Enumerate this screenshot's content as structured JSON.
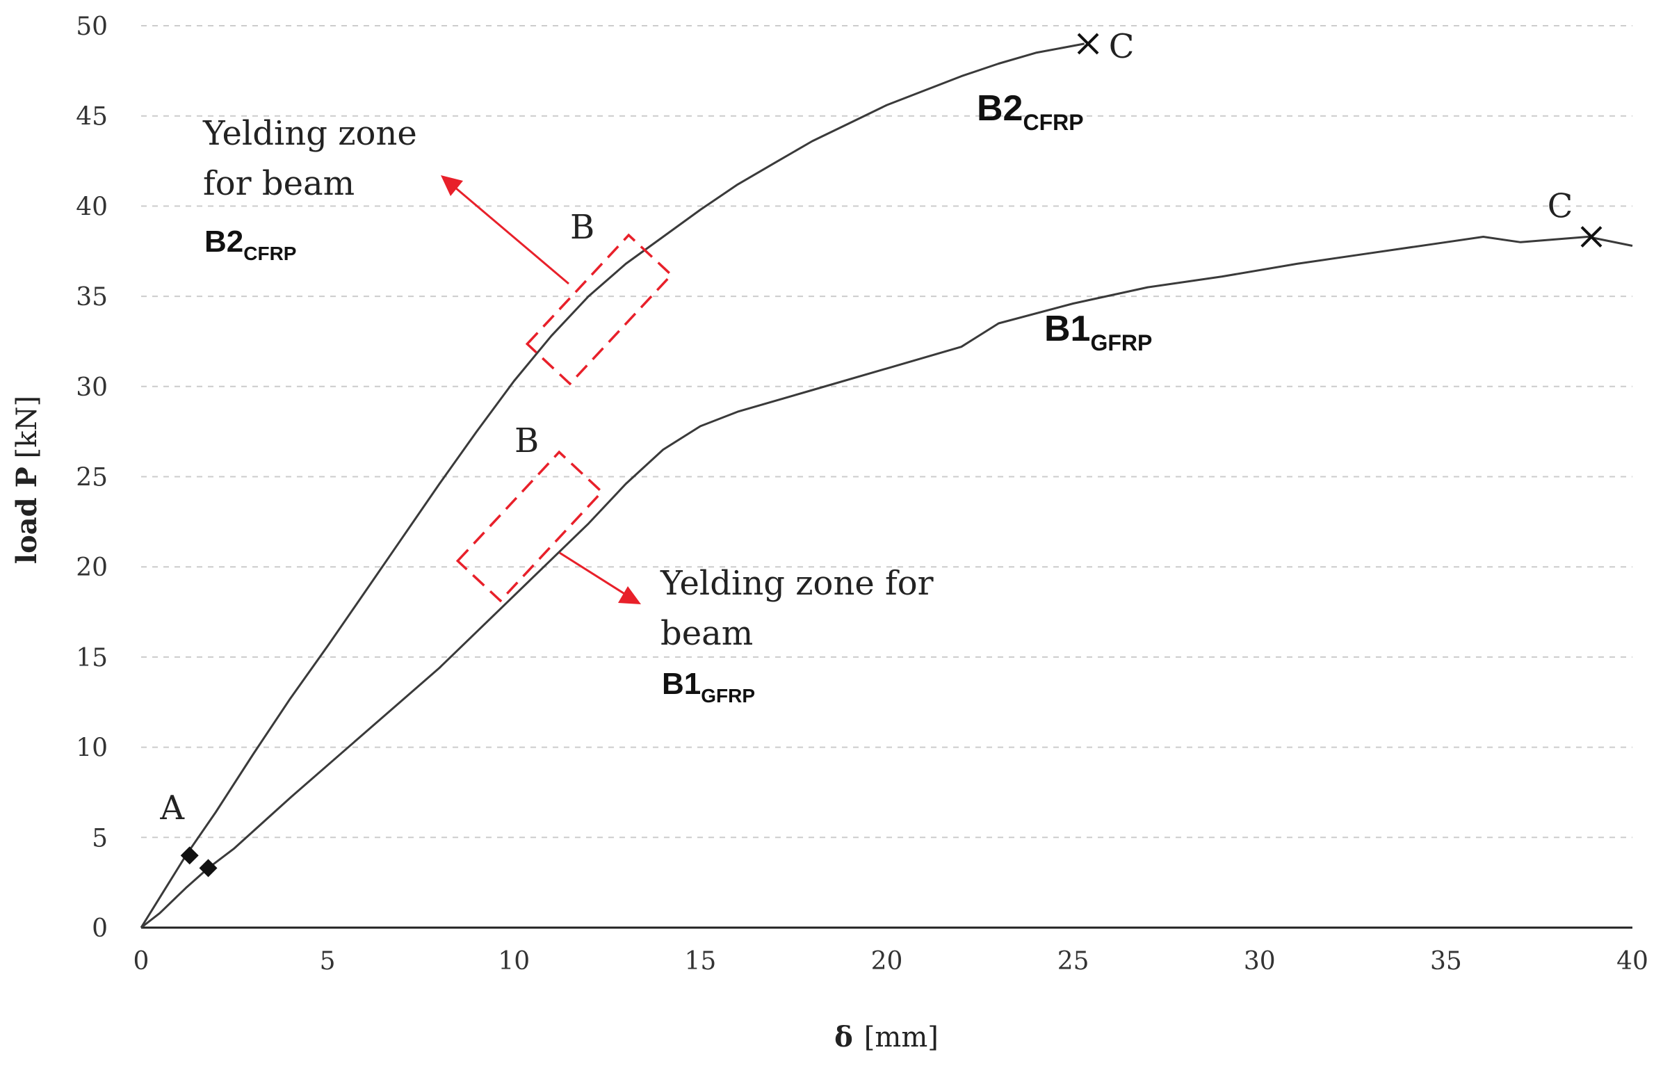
{
  "chart_data": {
    "type": "line",
    "title": "",
    "xlabel": "δ",
    "xlabel_unit": "[mm]",
    "ylabel": "load P",
    "ylabel_unit": "[kN]",
    "xlim": [
      0,
      40
    ],
    "ylim": [
      0,
      50
    ],
    "xticks": [
      0,
      5,
      10,
      15,
      20,
      25,
      30,
      35,
      40
    ],
    "yticks": [
      0,
      5,
      10,
      15,
      20,
      25,
      30,
      35,
      40,
      45,
      50
    ],
    "grid": "horizontal dashed",
    "series": [
      {
        "name": "B2",
        "sub": "CFRP",
        "x": [
          0,
          0.6,
          1.2,
          2,
          3,
          4,
          5,
          6,
          7,
          8,
          9,
          10,
          11,
          12,
          13,
          14,
          15,
          16,
          17,
          18,
          19,
          20,
          21,
          22,
          23,
          24,
          25.3
        ],
        "y": [
          0,
          2,
          4,
          6.4,
          9.6,
          12.7,
          15.6,
          18.6,
          21.6,
          24.6,
          27.5,
          30.3,
          32.8,
          35.0,
          36.8,
          38.3,
          39.8,
          41.2,
          42.4,
          43.6,
          44.6,
          45.6,
          46.4,
          47.2,
          47.9,
          48.5,
          49.0
        ]
      },
      {
        "name": "B1",
        "sub": "GFRP",
        "x": [
          0,
          0.5,
          1.2,
          1.8,
          2.5,
          4,
          6,
          8,
          10,
          11,
          12,
          13,
          14,
          15,
          16,
          18,
          20,
          22,
          23,
          25,
          27,
          29,
          31,
          33,
          35,
          36,
          37,
          38.8,
          40
        ],
        "y": [
          0,
          0.8,
          2.2,
          3.3,
          4.4,
          7.2,
          10.8,
          14.4,
          18.4,
          20.4,
          22.4,
          24.6,
          26.5,
          27.8,
          28.6,
          29.8,
          31.0,
          32.2,
          33.5,
          34.6,
          35.5,
          36.1,
          36.8,
          37.4,
          38.0,
          38.3,
          38.0,
          38.3,
          37.8
        ]
      }
    ],
    "markers": [
      {
        "label": "A",
        "x": 1.3,
        "y": 4.0,
        "shape": "diamond"
      },
      {
        "label": "",
        "x": 1.8,
        "y": 3.3,
        "shape": "diamond"
      },
      {
        "label": "C",
        "x": 25.4,
        "y": 49.0,
        "shape": "x"
      },
      {
        "label": "C",
        "x": 38.9,
        "y": 38.3,
        "shape": "x"
      }
    ],
    "annotations": [
      {
        "text_lines": [
          "Yelding zone",
          "for beam"
        ],
        "beam": "B2",
        "beam_sub": "CFRP"
      },
      {
        "text_lines": [
          "Yelding zone for",
          "beam"
        ],
        "beam": "B1",
        "beam_sub": "GFRP"
      },
      {
        "text": "B",
        "ref": "B2 yield point"
      },
      {
        "text": "B",
        "ref": "B1 yield point"
      }
    ]
  },
  "colors": {
    "curve": "#3a3a3a",
    "axis": "#222222",
    "grid": "#cccccc",
    "highlight": "#e8202a",
    "marker": "#111111"
  }
}
